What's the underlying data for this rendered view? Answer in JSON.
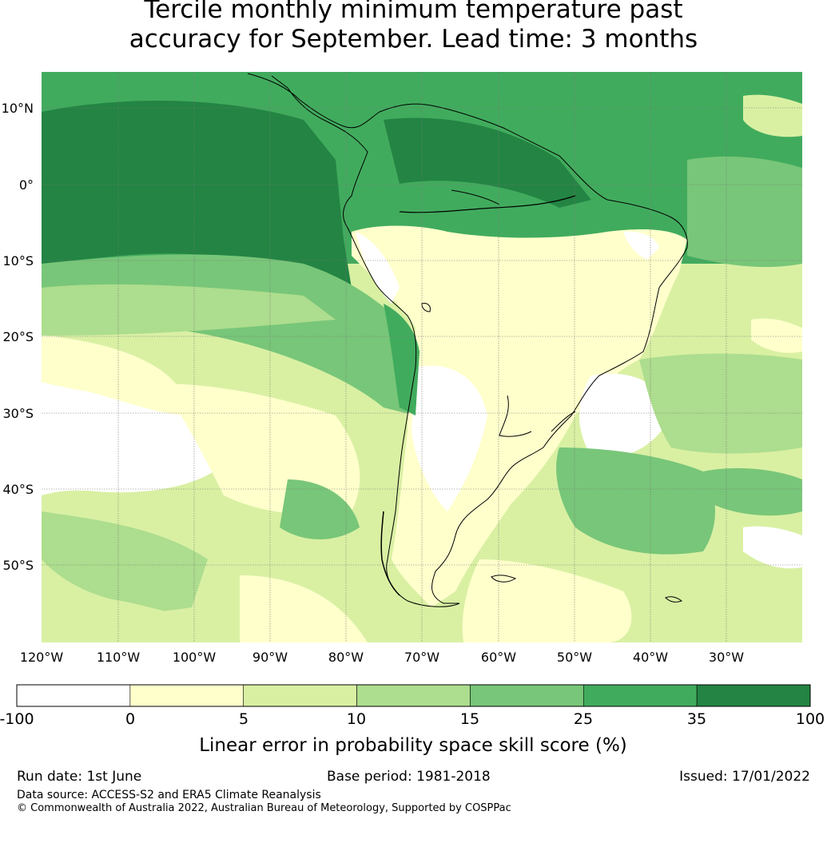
{
  "title": {
    "line1": "Tercile monthly minimum temperature past",
    "line2": "accuracy for September. Lead time: 3 months"
  },
  "map": {
    "lat_labels": [
      "10°N",
      "0°",
      "10°S",
      "20°S",
      "30°S",
      "40°S",
      "50°S"
    ],
    "lon_labels": [
      "120°W",
      "110°W",
      "100°W",
      "90°W",
      "80°W",
      "70°W",
      "60°W",
      "50°W",
      "40°W",
      "30°W"
    ],
    "legend_levels": [
      {
        "range": "-100 to 0",
        "color": "#ffffff"
      },
      {
        "range": "0 to 5",
        "color": "#ffffcc"
      },
      {
        "range": "5 to 10",
        "color": "#d9f0a3"
      },
      {
        "range": "10 to 15",
        "color": "#addd8e"
      },
      {
        "range": "15 to 25",
        "color": "#78c679"
      },
      {
        "range": "25 to 35",
        "color": "#41ab5d"
      },
      {
        "range": "35 to 100",
        "color": "#238443"
      }
    ]
  },
  "colorbar": {
    "ticks": [
      "-100",
      "0",
      "5",
      "10",
      "15",
      "25",
      "35",
      "100"
    ],
    "label": "Linear error in probability space skill score (%)"
  },
  "footer": {
    "run_date": "Run date: 1st June",
    "base_period": "Base period: 1981-2018",
    "issued": "Issued: 17/01/2022",
    "data_source": "Data source: ACCESS-S2 and ERA5 Climate Reanalysis",
    "copyright": "© Commonwealth of Australia 2022, Australian Bureau of Meteorology, Supported by COSPPac"
  }
}
